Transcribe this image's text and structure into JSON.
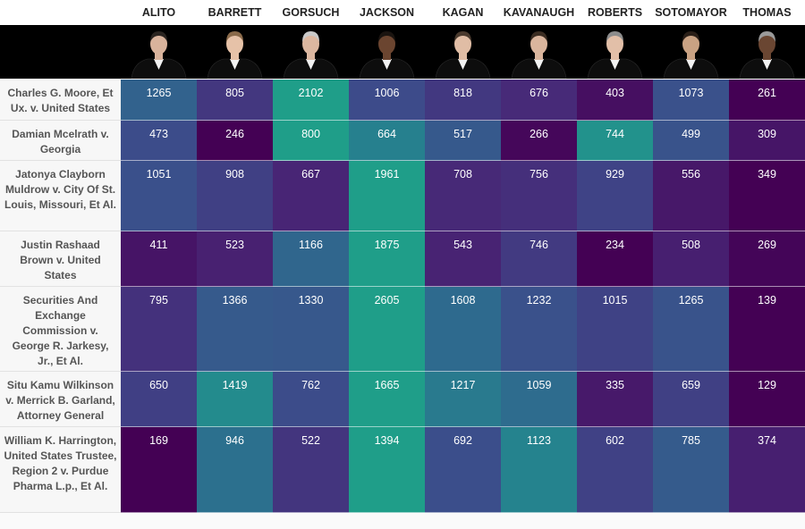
{
  "chart_data": {
    "type": "heatmap",
    "justices": [
      {
        "name": "ALITO",
        "photo": "portrait-alito"
      },
      {
        "name": "BARRETT",
        "photo": "portrait-barrett"
      },
      {
        "name": "GORSUCH",
        "photo": "portrait-gorsuch"
      },
      {
        "name": "JACKSON",
        "photo": "portrait-jackson"
      },
      {
        "name": "KAGAN",
        "photo": "portrait-kagan"
      },
      {
        "name": "KAVANAUGH",
        "photo": "portrait-kavanaugh"
      },
      {
        "name": "ROBERTS",
        "photo": "portrait-roberts"
      },
      {
        "name": "SOTOMAYOR",
        "photo": "portrait-sotomayor"
      },
      {
        "name": "THOMAS",
        "photo": "portrait-thomas"
      }
    ],
    "cases": [
      "Charles G. Moore, Et Ux. v. United States",
      "Damian Mcelrath v. Georgia",
      "Jatonya Clayborn Muldrow v. City Of St. Louis, Missouri, Et Al.",
      "Justin Rashaad Brown v. United States",
      "Securities And Exchange Commission v. George R. Jarkesy, Jr., Et Al.",
      "Situ Kamu Wilkinson v. Merrick B. Garland, Attorney General",
      "William K. Harrington, United States Trustee, Region 2 v. Purdue Pharma L.p., Et Al."
    ],
    "values": [
      [
        1265,
        805,
        2102,
        1006,
        818,
        676,
        403,
        1073,
        261
      ],
      [
        473,
        246,
        800,
        664,
        517,
        266,
        744,
        499,
        309
      ],
      [
        1051,
        908,
        667,
        1961,
        708,
        756,
        929,
        556,
        349
      ],
      [
        411,
        523,
        1166,
        1875,
        543,
        746,
        234,
        508,
        269
      ],
      [
        795,
        1366,
        1330,
        2605,
        1608,
        1232,
        1015,
        1265,
        139
      ],
      [
        650,
        1419,
        762,
        1665,
        1217,
        1059,
        335,
        659,
        129
      ],
      [
        169,
        946,
        522,
        1394,
        692,
        1123,
        602,
        785,
        374
      ]
    ],
    "color_scale": {
      "scheme": "per-row viridis (dark purple = row minimum, teal = row maximum)",
      "stops": [
        "#440154",
        "#482575",
        "#3d4a8a",
        "#2e6b8e",
        "#24868e",
        "#1f9e89"
      ]
    }
  }
}
